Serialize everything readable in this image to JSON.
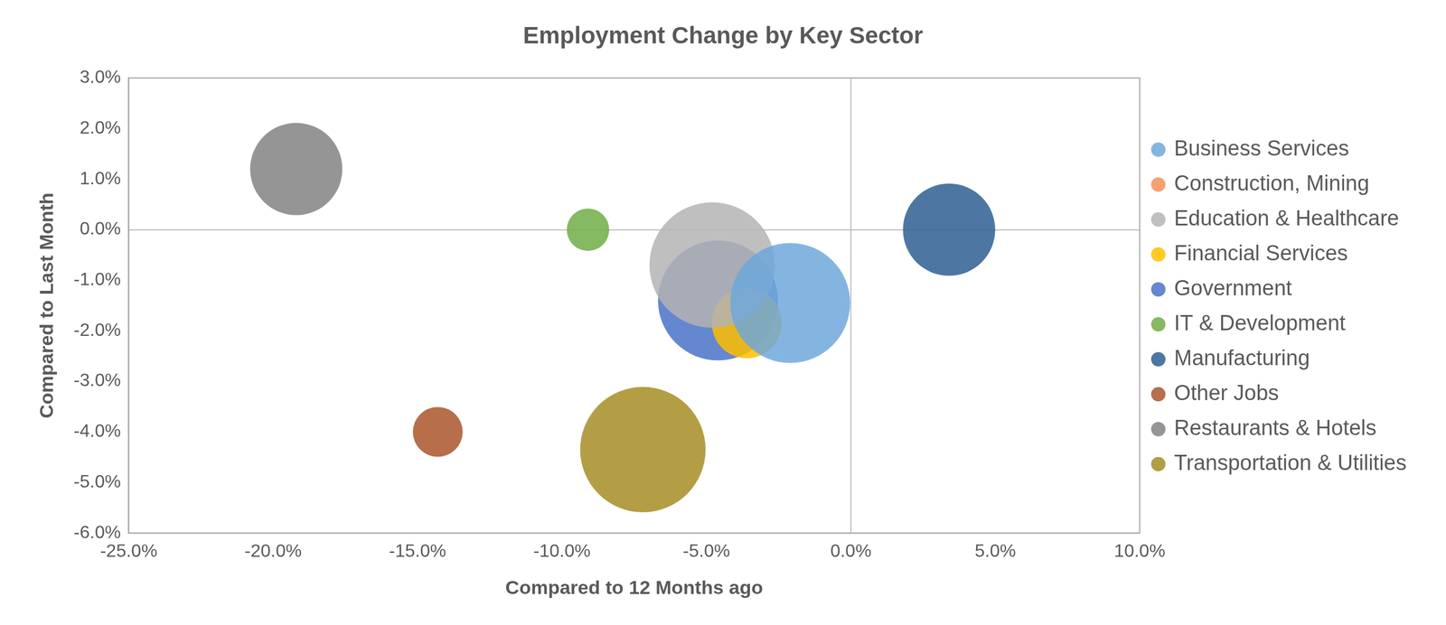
{
  "chart_data": {
    "type": "bubble",
    "title": "Employment Change by Key Sector",
    "x_label": "Compared to 12 Months ago",
    "y_label": "Compared to Last Month",
    "xlim": [
      -25,
      10
    ],
    "ylim": [
      -6,
      3
    ],
    "xticks": [
      {
        "value": -25,
        "label": "-25.0%"
      },
      {
        "value": -20,
        "label": "-20.0%"
      },
      {
        "value": -15,
        "label": "-15.0%"
      },
      {
        "value": -10,
        "label": "-10.0%"
      },
      {
        "value": -5,
        "label": "-5.0%"
      },
      {
        "value": 0,
        "label": "0.0%"
      },
      {
        "value": 5,
        "label": "5.0%"
      },
      {
        "value": 10,
        "label": "10.0%"
      }
    ],
    "yticks": [
      {
        "value": -6,
        "label": "-6.0%"
      },
      {
        "value": -5,
        "label": "-5.0%"
      },
      {
        "value": -4,
        "label": "-4.0%"
      },
      {
        "value": -3,
        "label": "-3.0%"
      },
      {
        "value": -2,
        "label": "-2.0%"
      },
      {
        "value": -1,
        "label": "-1.0%"
      },
      {
        "value": 0,
        "label": "0.0%"
      },
      {
        "value": 1,
        "label": "1.0%"
      },
      {
        "value": 2,
        "label": "2.0%"
      },
      {
        "value": 3,
        "label": "3.0%"
      }
    ],
    "grid": false,
    "legend": "right",
    "series": [
      {
        "name": "Business Services",
        "color": "#6fa8dc",
        "x": [
          -2.1
        ],
        "y": [
          -1.45
        ],
        "size": [
          65
        ]
      },
      {
        "name": "Construction, Mining",
        "color": "#f4915a",
        "x": [],
        "y": [],
        "size": []
      },
      {
        "name": "Education & Healthcare",
        "color": "#b4b4b4",
        "x": [
          -4.8
        ],
        "y": [
          -0.7
        ],
        "size": [
          68
        ]
      },
      {
        "name": "Financial Services",
        "color": "#ffc000",
        "x": [
          -3.6
        ],
        "y": [
          -1.85
        ],
        "size": [
          38
        ]
      },
      {
        "name": "Government",
        "color": "#4a72c8",
        "x": [
          -4.6
        ],
        "y": [
          -1.4
        ],
        "size": [
          65
        ]
      },
      {
        "name": "IT & Development",
        "color": "#70ad47",
        "x": [
          -9.1
        ],
        "y": [
          0.0
        ],
        "size": [
          23
        ]
      },
      {
        "name": "Manufacturing",
        "color": "#2e5f92",
        "x": [
          3.4
        ],
        "y": [
          0.0
        ],
        "size": [
          50
        ]
      },
      {
        "name": "Other Jobs",
        "color": "#a9562a",
        "x": [
          -14.3
        ],
        "y": [
          -4.0
        ],
        "size": [
          27
        ]
      },
      {
        "name": "Restaurants & Hotels",
        "color": "#838383",
        "x": [
          -19.2
        ],
        "y": [
          1.2
        ],
        "size": [
          50
        ]
      },
      {
        "name": "Transportation & Utilities",
        "color": "#a68d24",
        "x": [
          -7.2
        ],
        "y": [
          -4.35
        ],
        "size": [
          68
        ]
      }
    ]
  }
}
